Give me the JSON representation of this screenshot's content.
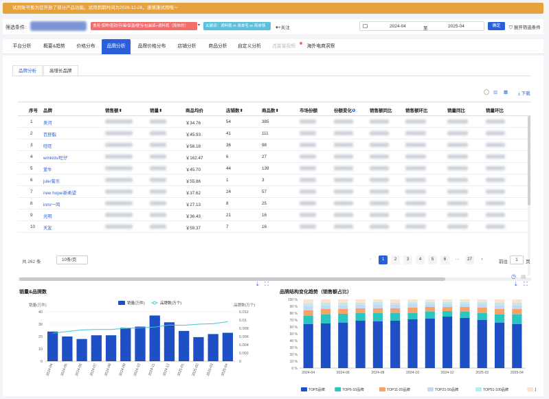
{
  "banner": {
    "text": "试用账号暂为您开放了部分产品功能。试用到期时间为2026-12-26，谨慎谨试用哦～"
  },
  "filter": {
    "label": "筛选条件:",
    "chip_red": "食用 保鲜/密封/存储/保温/便当/包装袋+调料瓶（简体的）",
    "chip_blue": "关键词：调料瓶 or 简单毛 or 简单筷",
    "follow": "+关注",
    "date_from": "2024-04",
    "date_sep": "至",
    "date_to": "2025-04",
    "confirm": "确定",
    "expand": "展开筛选条件"
  },
  "tabs": [
    {
      "label": "平台分析"
    },
    {
      "label": "概要&趋势"
    },
    {
      "label": "价格分布"
    },
    {
      "label": "品牌分析",
      "active": true
    },
    {
      "label": "品牌价格分布"
    },
    {
      "label": "店铺分析"
    },
    {
      "label": "商品分析"
    },
    {
      "label": "自定义分析"
    },
    {
      "label": "流量量视频",
      "disabled": true
    },
    {
      "label": "海外电商洞察"
    }
  ],
  "subtabs": [
    "品牌分析",
    "高增长品牌"
  ],
  "tools": {
    "download": "下载"
  },
  "table": {
    "headers": [
      "序号",
      "品牌",
      "销售额",
      "销量",
      "商品均价",
      "店铺数",
      "商品数",
      "市场份额",
      "份额变化",
      "销售额同比",
      "销售额环比",
      "销量同比",
      "销量环比"
    ],
    "rows": [
      {
        "idx": "1",
        "brand": "美河",
        "price": "￥34.76",
        "shops": "54",
        "items": "385"
      },
      {
        "idx": "2",
        "brand": "百舒脂",
        "price": "￥45.93",
        "shops": "41",
        "items": "111"
      },
      {
        "idx": "3",
        "brand": "旺旺",
        "price": "￥56.18",
        "shops": "36",
        "items": "98"
      },
      {
        "idx": "4",
        "brand": "wmkids/旺仔",
        "price": "￥162.47",
        "shops": "6",
        "items": "27"
      },
      {
        "idx": "5",
        "brand": "爱牛",
        "price": "￥45.70",
        "shops": "44",
        "items": "139"
      },
      {
        "idx": "6",
        "brand": "jule/菊乐",
        "price": "￥55.86",
        "shops": "1",
        "items": "3"
      },
      {
        "idx": "7",
        "brand": "new hope/新希望",
        "price": "￥37.62",
        "shops": "24",
        "items": "57"
      },
      {
        "idx": "8",
        "brand": "inm/一鸣",
        "price": "￥27.13",
        "shops": "8",
        "items": "25"
      },
      {
        "idx": "9",
        "brand": "光明",
        "price": "￥36.43",
        "shops": "21",
        "items": "16"
      },
      {
        "idx": "10",
        "brand": "天友",
        "price": "￥59.37",
        "shops": "7",
        "items": "16"
      }
    ]
  },
  "pagination": {
    "total": "共 262 条",
    "page_size": "10条/页",
    "pages": [
      "1",
      "2",
      "3",
      "4",
      "5",
      "6",
      "···",
      "27"
    ],
    "prev": "‹",
    "next": "›",
    "goto": "前往",
    "goto_value": "1",
    "suffix": "页"
  },
  "chart_data": [
    {
      "type": "bar",
      "title": "销量&品牌数",
      "ylabel_left": "销量(万件)",
      "ylabel_right": "品牌数(万个)",
      "categories": [
        "2024-04",
        "2024-05",
        "2024-06",
        "2024-07",
        "2024-08",
        "2024-09",
        "2024-10",
        "2024-11",
        "2024-12",
        "2025-01",
        "2025-02",
        "2025-03",
        "2025-04"
      ],
      "series": [
        {
          "name": "销量(万件)",
          "type": "bar",
          "values": [
            24,
            20,
            18,
            21,
            21,
            27,
            28,
            37,
            31.5,
            24.5,
            19.5,
            22,
            23
          ]
        },
        {
          "name": "品牌数(万个)",
          "type": "line",
          "values": [
            0.0068,
            0.0072,
            0.0076,
            0.0077,
            0.0077,
            0.008,
            0.0081,
            0.0083,
            0.0088,
            0.0087,
            0.009,
            0.0091,
            0.0096
          ]
        }
      ],
      "ylim_left": [
        0,
        40
      ],
      "ylim_right": [
        0,
        0.012
      ],
      "yticks_left": [
        "0",
        "10",
        "20",
        "30",
        "40"
      ],
      "yticks_right": [
        "0",
        "0.002",
        "0.004",
        "0.006",
        "0.008",
        "0.01",
        "0.012"
      ]
    },
    {
      "type": "bar",
      "stacked": true,
      "title": "品牌结构变化趋势（销售额占比）",
      "categories": [
        "2024-04",
        "2024-05",
        "2024-06",
        "2024-07",
        "2024-08",
        "2024-09",
        "2024-10",
        "2024-11",
        "2024-12",
        "2025-01",
        "2025-02",
        "2025-03",
        "2025-04"
      ],
      "yticks": [
        "0 %",
        "10 %",
        "20 %",
        "30 %",
        "40 %",
        "50 %",
        "60 %",
        "70 %",
        "80 %",
        "90 %",
        "100 %"
      ],
      "series": [
        {
          "name": "TOP5品牌",
          "color": "#1f4fc4",
          "values": [
            64,
            65,
            66,
            69,
            68,
            69,
            71,
            72,
            75,
            73,
            70,
            66,
            64
          ]
        },
        {
          "name": "TOP6-10品牌",
          "color": "#2cc6c0",
          "values": [
            12,
            13,
            13,
            11,
            12,
            11,
            9,
            10,
            8,
            9,
            10,
            12,
            14
          ]
        },
        {
          "name": "TOP11-20品牌",
          "color": "#f4a36a",
          "values": [
            8,
            8,
            7,
            7,
            7,
            7,
            8,
            7,
            6,
            7,
            8,
            8,
            8
          ]
        },
        {
          "name": "TOP21-50品牌",
          "color": "#c9d6f4",
          "values": [
            6,
            5,
            5,
            5,
            5,
            5,
            5,
            4,
            4,
            4,
            5,
            5,
            5
          ]
        },
        {
          "name": "TOP51-100品牌",
          "color": "#b9ecee",
          "values": [
            4,
            4,
            4,
            3,
            4,
            3,
            3,
            3,
            3,
            3,
            3,
            4,
            4
          ]
        },
        {
          "name": "其他品牌",
          "color": "#fbe3d2",
          "values": [
            6,
            5,
            5,
            5,
            4,
            5,
            4,
            4,
            4,
            4,
            4,
            5,
            5
          ]
        }
      ],
      "ylim": [
        0,
        100
      ]
    }
  ]
}
